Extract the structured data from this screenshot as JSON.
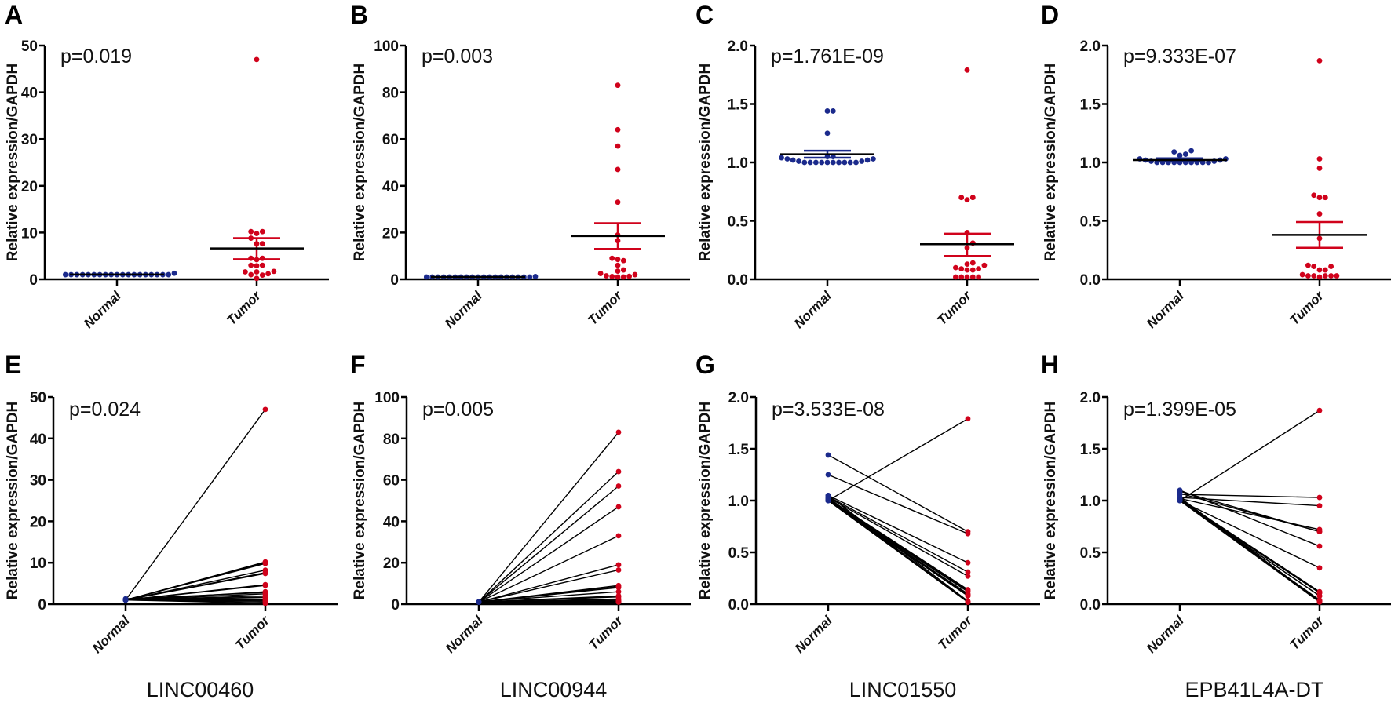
{
  "colors": {
    "normal": "#1b2a8c",
    "tumor": "#d0021b",
    "mean": "#000000"
  },
  "chart_data": [
    {
      "panel": "A",
      "type": "scatter",
      "ylabel": "Relative expression/GAPDH",
      "categories": [
        "Normal",
        "Tumor"
      ],
      "ylim": [
        0,
        50
      ],
      "ticks": [
        "0",
        "10",
        "20",
        "30",
        "40",
        "50"
      ],
      "p_text": "p=0.019",
      "normal": [
        1,
        1,
        1,
        1,
        1,
        1,
        1,
        1,
        1,
        1,
        1.3,
        1,
        1,
        1,
        1,
        1,
        1,
        1,
        1,
        1
      ],
      "tumor": [
        47,
        10.2,
        10.2,
        9.8,
        8.8,
        7.6,
        7.6,
        4.5,
        4.5,
        4.2,
        3.0,
        3.0,
        2.9,
        1.7,
        1.6,
        1.6,
        1.2,
        1.0,
        0.9,
        0.2
      ],
      "normal_stats": {
        "mean": 1.02,
        "sem_low": 1.0,
        "sem_high": 1.05
      },
      "tumor_stats": {
        "mean": 6.6,
        "sem_low": 4.3,
        "sem_high": 8.8
      }
    },
    {
      "panel": "B",
      "type": "scatter",
      "ylabel": "Relative expression/GAPDH",
      "categories": [
        "Normal",
        "Tumor"
      ],
      "ylim": [
        0,
        100
      ],
      "ticks": [
        "0",
        "20",
        "40",
        "60",
        "80",
        "100"
      ],
      "p_text": "p=0.003",
      "normal": [
        1,
        1,
        1,
        1,
        1,
        1,
        1,
        1,
        1,
        1,
        1.2,
        1,
        1,
        1,
        1,
        1,
        1,
        1,
        1,
        1
      ],
      "tumor": [
        83,
        64,
        57,
        47,
        33,
        19,
        16.5,
        9,
        8.5,
        8,
        6,
        4,
        3.5,
        2.5,
        1.5,
        1.2,
        1,
        1,
        1.3,
        2
      ],
      "normal_stats": {
        "mean": 1.02,
        "sem_low": 1.0,
        "sem_high": 1.05
      },
      "tumor_stats": {
        "mean": 18.5,
        "sem_low": 13,
        "sem_high": 24
      }
    },
    {
      "panel": "C",
      "type": "scatter",
      "ylabel": "Relative expression/GAPDH",
      "categories": [
        "Normal",
        "Tumor"
      ],
      "ylim": [
        0,
        2
      ],
      "ticks": [
        "0.0",
        "0.5",
        "1.0",
        "1.5",
        "2.0"
      ],
      "p_text": "p=1.761E-09",
      "normal": [
        1.44,
        1.44,
        1.25,
        1.05,
        1.04,
        1.03,
        1.02,
        1.01,
        1.0,
        1.0,
        1.0,
        1.0,
        1.0,
        1.0,
        1.0,
        1.0,
        1.0,
        1.0,
        1.01,
        1.02,
        1.03,
        1.05
      ],
      "tumor": [
        1.79,
        0.7,
        0.7,
        0.68,
        0.4,
        0.31,
        0.27,
        0.14,
        0.13,
        0.12,
        0.1,
        0.09,
        0.09,
        0.08,
        0.08,
        0.02,
        0.02,
        0.02,
        0.02,
        0.02
      ],
      "normal_stats": {
        "mean": 1.07,
        "sem_low": 1.04,
        "sem_high": 1.1
      },
      "tumor_stats": {
        "mean": 0.3,
        "sem_low": 0.2,
        "sem_high": 0.39
      }
    },
    {
      "panel": "D",
      "type": "scatter",
      "ylabel": "Relative expression/GAPDH",
      "categories": [
        "Normal",
        "Tumor"
      ],
      "ylim": [
        0,
        2
      ],
      "ticks": [
        "0.0",
        "0.5",
        "1.0",
        "1.5",
        "2.0"
      ],
      "p_text": "p=9.333E-07",
      "normal": [
        1.06,
        1.03,
        1.02,
        1.01,
        1.0,
        1.0,
        1.0,
        1.0,
        1.09,
        1.07,
        1.1,
        1.0,
        1.0,
        1.0,
        1.0,
        1.0,
        1.0,
        1.01,
        1.02,
        1.03
      ],
      "tumor": [
        1.87,
        1.03,
        0.95,
        0.72,
        0.7,
        0.7,
        0.56,
        0.35,
        0.12,
        0.11,
        0.11,
        0.08,
        0.08,
        0.04,
        0.03,
        0.03,
        0.03,
        0.03,
        0.03,
        0.02
      ],
      "normal_stats": {
        "mean": 1.02,
        "sem_low": 1.01,
        "sem_high": 1.035
      },
      "tumor_stats": {
        "mean": 0.38,
        "sem_low": 0.27,
        "sem_high": 0.49
      }
    },
    {
      "panel": "E",
      "type": "line",
      "gene": "LINC00460",
      "ylabel": "Relative expression/GAPDH",
      "categories": [
        "Normal",
        "Tumor"
      ],
      "ylim": [
        0,
        50
      ],
      "ticks": [
        "0",
        "10",
        "20",
        "30",
        "40",
        "50"
      ],
      "p_text": "p=0.024",
      "normal": [
        1,
        1,
        1,
        1,
        1,
        1,
        1,
        1,
        1,
        1,
        1.3,
        1,
        1,
        1,
        1,
        1,
        1,
        1,
        1,
        1
      ],
      "tumor": [
        47,
        10.2,
        10.0,
        9.8,
        8.2,
        7.6,
        7.4,
        4.7,
        4.5,
        3.0,
        2.8,
        2.5,
        2.0,
        1.7,
        1.6,
        1.2,
        1.0,
        0.8,
        0.5,
        0.2
      ]
    },
    {
      "panel": "F",
      "type": "line",
      "gene": "LINC00944",
      "ylabel": "Relative expression/GAPDH",
      "categories": [
        "Normal",
        "Tumor"
      ],
      "ylim": [
        0,
        100
      ],
      "ticks": [
        "0",
        "20",
        "40",
        "60",
        "80",
        "100"
      ],
      "p_text": "p=0.005",
      "normal": [
        1,
        1,
        1,
        1,
        1,
        1,
        1,
        1,
        1,
        1,
        1.2,
        1,
        1,
        1,
        1,
        1,
        1,
        1,
        1,
        1
      ],
      "tumor": [
        83,
        64,
        57,
        47,
        33,
        19,
        16.5,
        9,
        8.5,
        8,
        6,
        4,
        3.5,
        2.5,
        1.5,
        1.2,
        1,
        1,
        1.3,
        2
      ]
    },
    {
      "panel": "G",
      "type": "line",
      "gene": "LINC01550",
      "ylabel": "Relative expression/GAPDH",
      "categories": [
        "Normal",
        "Tumor"
      ],
      "ylim": [
        0,
        2
      ],
      "ticks": [
        "0.0",
        "0.5",
        "1.0",
        "1.5",
        "2.0"
      ],
      "p_text": "p=3.533E-08",
      "normal": [
        1.44,
        1.25,
        1.0,
        1.05,
        1.04,
        1.03,
        1.02,
        1.01,
        1.0,
        1.0,
        1.0,
        1.0,
        1.0,
        1.0,
        1.0,
        1.0,
        1.01,
        1.02,
        1.03,
        1.05
      ],
      "tumor": [
        0.7,
        0.68,
        1.79,
        0.4,
        0.31,
        0.27,
        0.14,
        0.13,
        0.12,
        0.1,
        0.09,
        0.09,
        0.08,
        0.08,
        0.02,
        0.02,
        0.02,
        0.02,
        0.02,
        0.03
      ]
    },
    {
      "panel": "H",
      "type": "line",
      "gene": "EPB41L4A-DT",
      "ylabel": "Relative expression/GAPDH",
      "categories": [
        "Normal",
        "Tumor"
      ],
      "ylim": [
        0,
        2
      ],
      "ticks": [
        "0.0",
        "0.5",
        "1.0",
        "1.5",
        "2.0"
      ],
      "p_text": "p=1.399E-05",
      "normal": [
        1.0,
        1.06,
        1.03,
        1.02,
        1.09,
        1.07,
        1.1,
        1.0,
        1.01,
        1.0,
        1.0,
        1.0,
        1.0,
        1.0,
        1.0,
        1.0,
        1.01,
        1.02,
        1.03,
        1.0
      ],
      "tumor": [
        1.87,
        1.03,
        0.95,
        0.72,
        0.7,
        0.7,
        0.56,
        0.35,
        0.12,
        0.11,
        0.11,
        0.08,
        0.08,
        0.04,
        0.03,
        0.03,
        0.03,
        0.03,
        0.03,
        0.02
      ]
    }
  ]
}
